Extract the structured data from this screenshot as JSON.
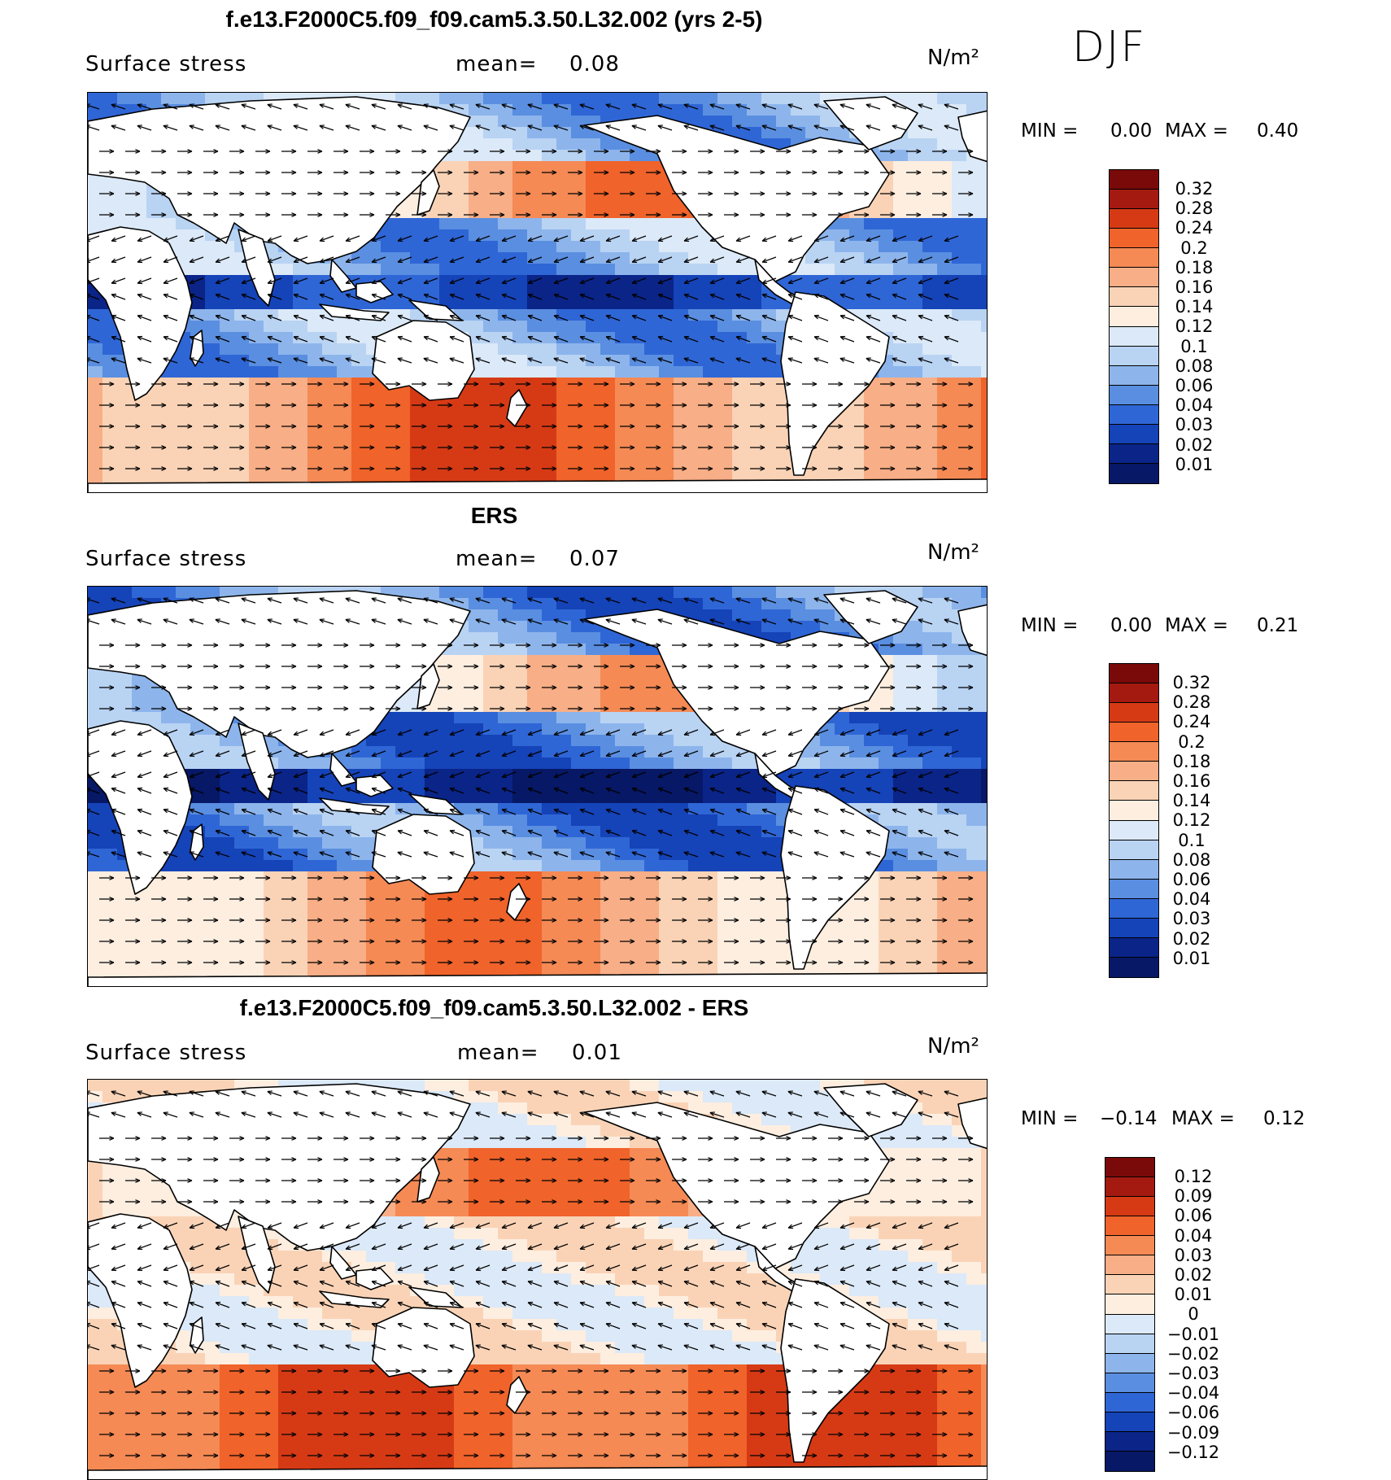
{
  "season": "DJF",
  "panels": [
    {
      "title": "f.e13.F2000C5.f09_f09.cam5.3.50.L32.002 (yrs 2-5)",
      "variable": "Surface stress",
      "mean_label": "mean=",
      "mean_value": "0.08",
      "units": "N/m²",
      "min_label": "MIN =",
      "min_value": "0.00",
      "max_label": "MAX =",
      "max_value": "0.40",
      "palette": "abs",
      "levels": [
        "0.32",
        "0.28",
        "0.24",
        "0.2",
        "0.18",
        "0.16",
        "0.14",
        "0.12",
        "0.1",
        "0.08",
        "0.06",
        "0.04",
        "0.03",
        "0.02",
        "0.01"
      ]
    },
    {
      "title": "ERS",
      "variable": "Surface stress",
      "mean_label": "mean=",
      "mean_value": "0.07",
      "units": "N/m²",
      "min_label": "MIN =",
      "min_value": "0.00",
      "max_label": "MAX =",
      "max_value": "0.21",
      "palette": "abs",
      "levels": [
        "0.32",
        "0.28",
        "0.24",
        "0.2",
        "0.18",
        "0.16",
        "0.14",
        "0.12",
        "0.1",
        "0.08",
        "0.06",
        "0.04",
        "0.03",
        "0.02",
        "0.01"
      ]
    },
    {
      "title": "f.e13.F2000C5.f09_f09.cam5.3.50.L32.002 - ERS",
      "variable": "Surface stress",
      "mean_label": "mean=",
      "mean_value": "0.01",
      "units": "N/m²",
      "min_label": "MIN =",
      "min_value": "−0.14",
      "max_label": "MAX =",
      "max_value": "0.12",
      "palette": "diff",
      "levels": [
        "0.12",
        "0.09",
        "0.06",
        "0.04",
        "0.03",
        "0.02",
        "0.01",
        "0",
        "−0.01",
        "−0.02",
        "−0.03",
        "−0.04",
        "−0.06",
        "−0.09",
        "−0.12"
      ]
    }
  ],
  "colors": {
    "abs": [
      "#7a0a0a",
      "#a51a10",
      "#d63a15",
      "#f0632a",
      "#f58a55",
      "#f8ae86",
      "#fad3b6",
      "#fdeee0",
      "#dbe9f8",
      "#b9d3f3",
      "#8db5ec",
      "#5a8ee0",
      "#2f66d6",
      "#1543b8",
      "#0a2488",
      "#061866"
    ],
    "diff": [
      "#7a0a0a",
      "#a51a10",
      "#d63a15",
      "#f0632a",
      "#f58a55",
      "#f8ae86",
      "#fad3b6",
      "#fdeee0",
      "#dbe9f8",
      "#b9d3f3",
      "#8db5ec",
      "#5a8ee0",
      "#2f66d6",
      "#1543b8",
      "#0a2488",
      "#061866"
    ]
  }
}
